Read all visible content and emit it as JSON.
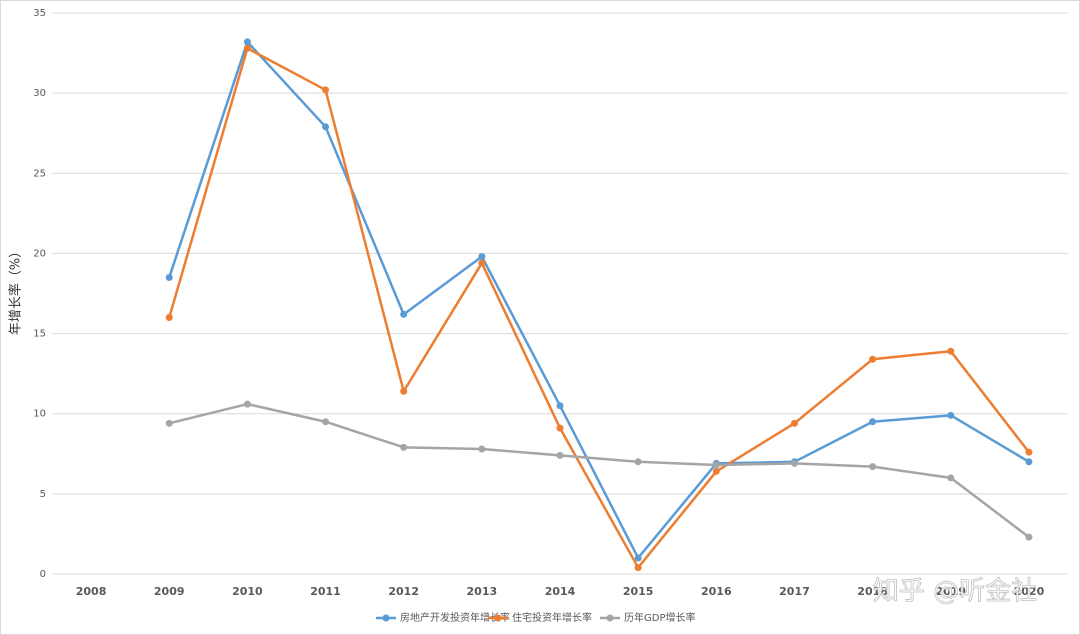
{
  "chart_data": {
    "type": "line",
    "y_label": "年增长率（%）",
    "categories": [
      "2008",
      "2009",
      "2010",
      "2011",
      "2012",
      "2013",
      "2014",
      "2015",
      "2016",
      "2017",
      "2018",
      "2019",
      "2020"
    ],
    "series": [
      {
        "name": "房地产开发投资年增长率",
        "color": "#5b9bd5",
        "values": [
          null,
          18.5,
          33.2,
          27.9,
          16.2,
          19.8,
          10.5,
          1.0,
          6.9,
          7.0,
          9.5,
          9.9,
          7.0
        ]
      },
      {
        "name": "住宅投资年增长率",
        "color": "#ed7d31",
        "values": [
          null,
          16.0,
          32.8,
          30.2,
          11.4,
          19.4,
          9.1,
          0.4,
          6.4,
          9.4,
          13.4,
          13.9,
          7.6
        ]
      },
      {
        "name": "历年GDP增长率",
        "color": "#a5a5a5",
        "values": [
          null,
          9.4,
          10.6,
          9.5,
          7.9,
          7.8,
          7.4,
          7.0,
          6.8,
          6.9,
          6.7,
          6.0,
          2.3
        ]
      }
    ],
    "ylim": [
      0,
      35
    ],
    "yticks": [
      0,
      5,
      10,
      15,
      20,
      25,
      30,
      35
    ],
    "grid": true,
    "legend": "bottom",
    "watermark": "知乎 @听金社"
  }
}
